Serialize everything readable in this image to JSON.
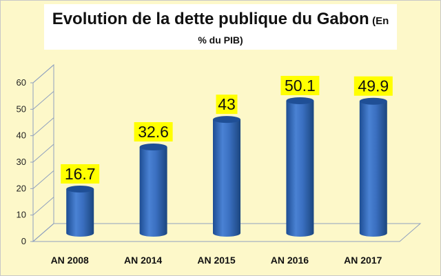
{
  "chart_data": {
    "type": "bar",
    "title": "Evolution de la dette publique du Gabon",
    "subtitle_part1": "(En",
    "subtitle_part2": "% du PIB)",
    "categories": [
      "AN 2008",
      "AN 2014",
      "AN 2015",
      "AN 2016",
      "AN 2017"
    ],
    "values": [
      16.7,
      32.6,
      43,
      50.1,
      49.9
    ],
    "data_labels": [
      "16.7",
      "32.6",
      "43",
      "50.1",
      "49.9"
    ],
    "yticks": [
      "0",
      "10",
      "20",
      "30",
      "40",
      "50",
      "60"
    ],
    "ylim": [
      0,
      60
    ],
    "xlabel": "",
    "ylabel": "",
    "bar_shape": "cylinder",
    "grid": true,
    "legend": "none",
    "colors": {
      "bar": "#3a6fc0",
      "bar_dark": "#1f4f96",
      "label_bg": "#ffff00",
      "background": "#fdf8c9",
      "wall_line": "#8fa0bf"
    }
  }
}
